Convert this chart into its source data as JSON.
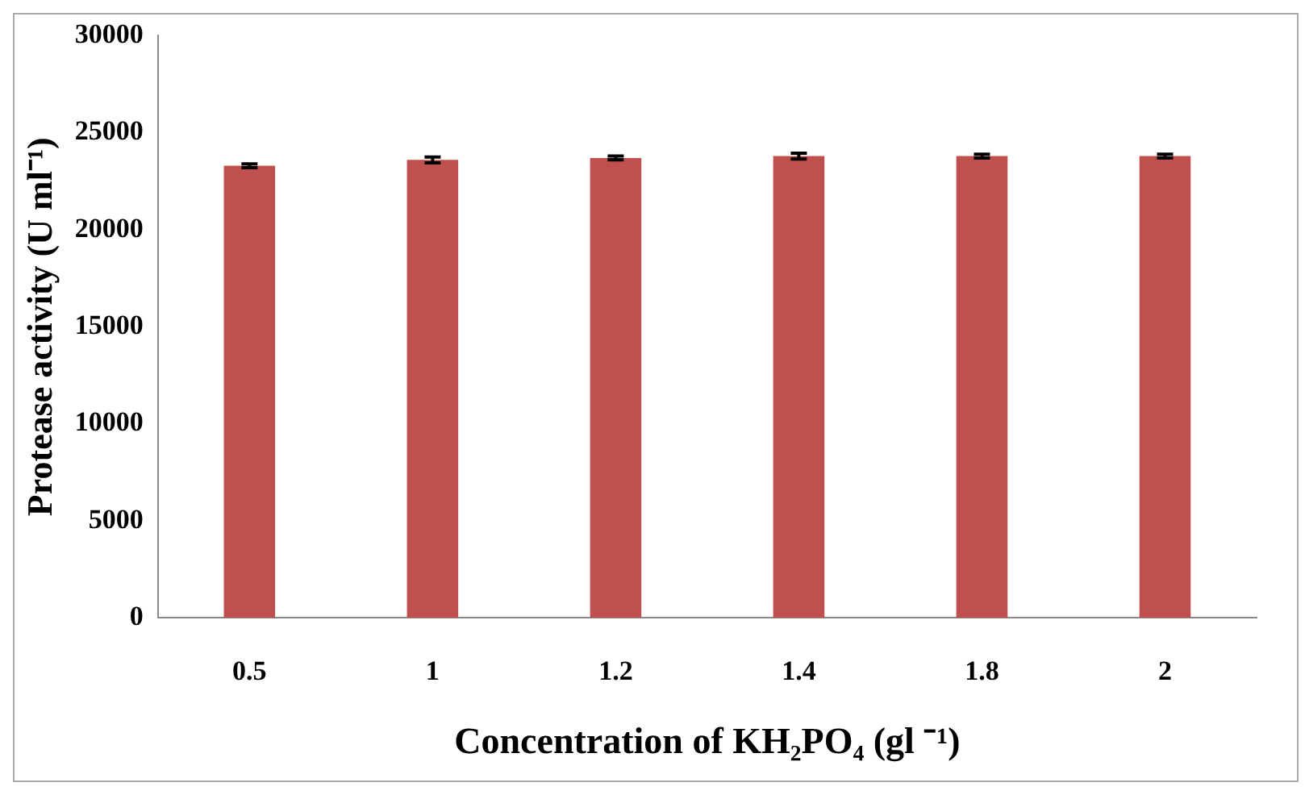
{
  "chart_data": {
    "type": "bar",
    "xlabel": "Concentration of KH₂PO₄ (gl ⁻¹)",
    "ylabel": "Protease activity (U ml⁻¹)",
    "categories": [
      "0.5",
      "1",
      "1.2",
      "1.4",
      "1.8",
      "2"
    ],
    "values": [
      23300,
      23600,
      23700,
      23800,
      23800,
      23800
    ],
    "errors": [
      100,
      150,
      100,
      150,
      100,
      100
    ],
    "color": "#c0504d",
    "ylim": [
      0,
      30000
    ],
    "yticks": [
      0,
      5000,
      10000,
      15000,
      20000,
      25000,
      30000
    ],
    "grid": false,
    "legend": false
  }
}
